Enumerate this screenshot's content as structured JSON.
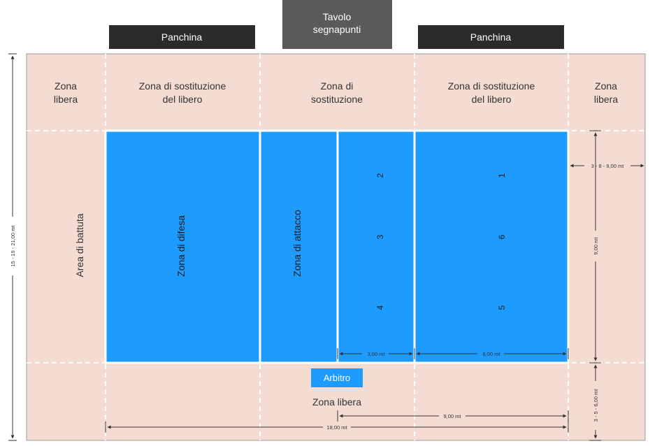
{
  "top_boxes": {
    "bench_left": "Panchina",
    "scorer_table_line1": "Tavolo",
    "scorer_table_line2": "segnapunti",
    "bench_right": "Panchina"
  },
  "zones": {
    "free_zone_left_line1": "Zona",
    "free_zone_left_line2": "libera",
    "libero_sub_left_line1": "Zona di sostituzione",
    "libero_sub_left_line2": "del libero",
    "substitution_line1": "Zona di",
    "substitution_line2": "sostituzione",
    "libero_sub_right_line1": "Zona di sostituzione",
    "libero_sub_right_line2": "del libero",
    "free_zone_right_line1": "Zona",
    "free_zone_right_line2": "libera",
    "service_area": "Area di battuta",
    "defense_zone": "Zona di difesa",
    "attack_zone": "Zona di attacco",
    "free_zone_bottom": "Zona libera",
    "referee": "Arbitro"
  },
  "positions": {
    "p2": "2",
    "p3": "3",
    "p4": "4",
    "p1": "1",
    "p6": "6",
    "p5": "5"
  },
  "dimensions": {
    "total_height": "15 - 19 - 21,00 mt",
    "side_free_width": "3 - 8 - 9,00 mt",
    "court_width": "9,00 mt",
    "bottom_free_width": "3 - 5 - 6,00 mt",
    "attack_depth": "3,00 mt",
    "back_depth": "6,00 mt",
    "half_length": "9,00 mt",
    "court_length": "18,00 mt"
  },
  "colors": {
    "free_zone": "#f5dcd2",
    "court": "#1e9bff",
    "dark_box": "#2b2b2b",
    "scorer_box": "#5a5a5a",
    "referee_box": "#1e9bff",
    "line": "#ffffff"
  }
}
